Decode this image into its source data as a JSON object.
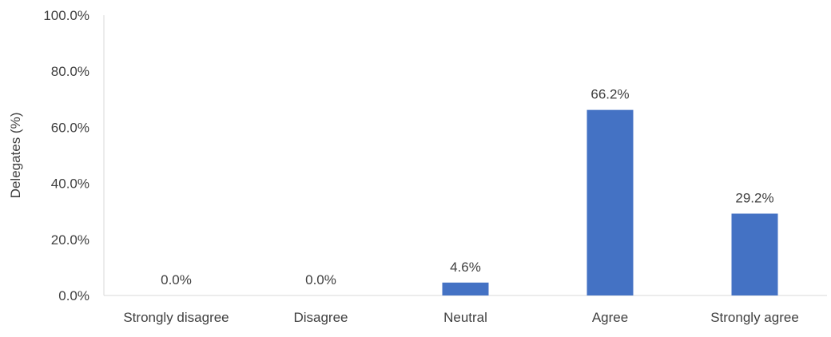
{
  "chart_data": {
    "type": "bar",
    "title": "",
    "xlabel": "",
    "ylabel": "Delegates (%)",
    "ylim": [
      0,
      100
    ],
    "yticks": [
      "0.0%",
      "20.0%",
      "40.0%",
      "60.0%",
      "80.0%",
      "100.0%"
    ],
    "ytick_values": [
      0,
      20,
      40,
      60,
      80,
      100
    ],
    "categories": [
      "Strongly disagree",
      "Disagree",
      "Neutral",
      "Agree",
      "Strongly agree"
    ],
    "values": [
      0.0,
      0.0,
      4.6,
      66.2,
      29.2
    ],
    "data_labels": [
      "0.0%",
      "0.0%",
      "4.6%",
      "66.2%",
      "29.2%"
    ],
    "bar_color": "#4472c4",
    "grid": false,
    "legend": "none"
  }
}
